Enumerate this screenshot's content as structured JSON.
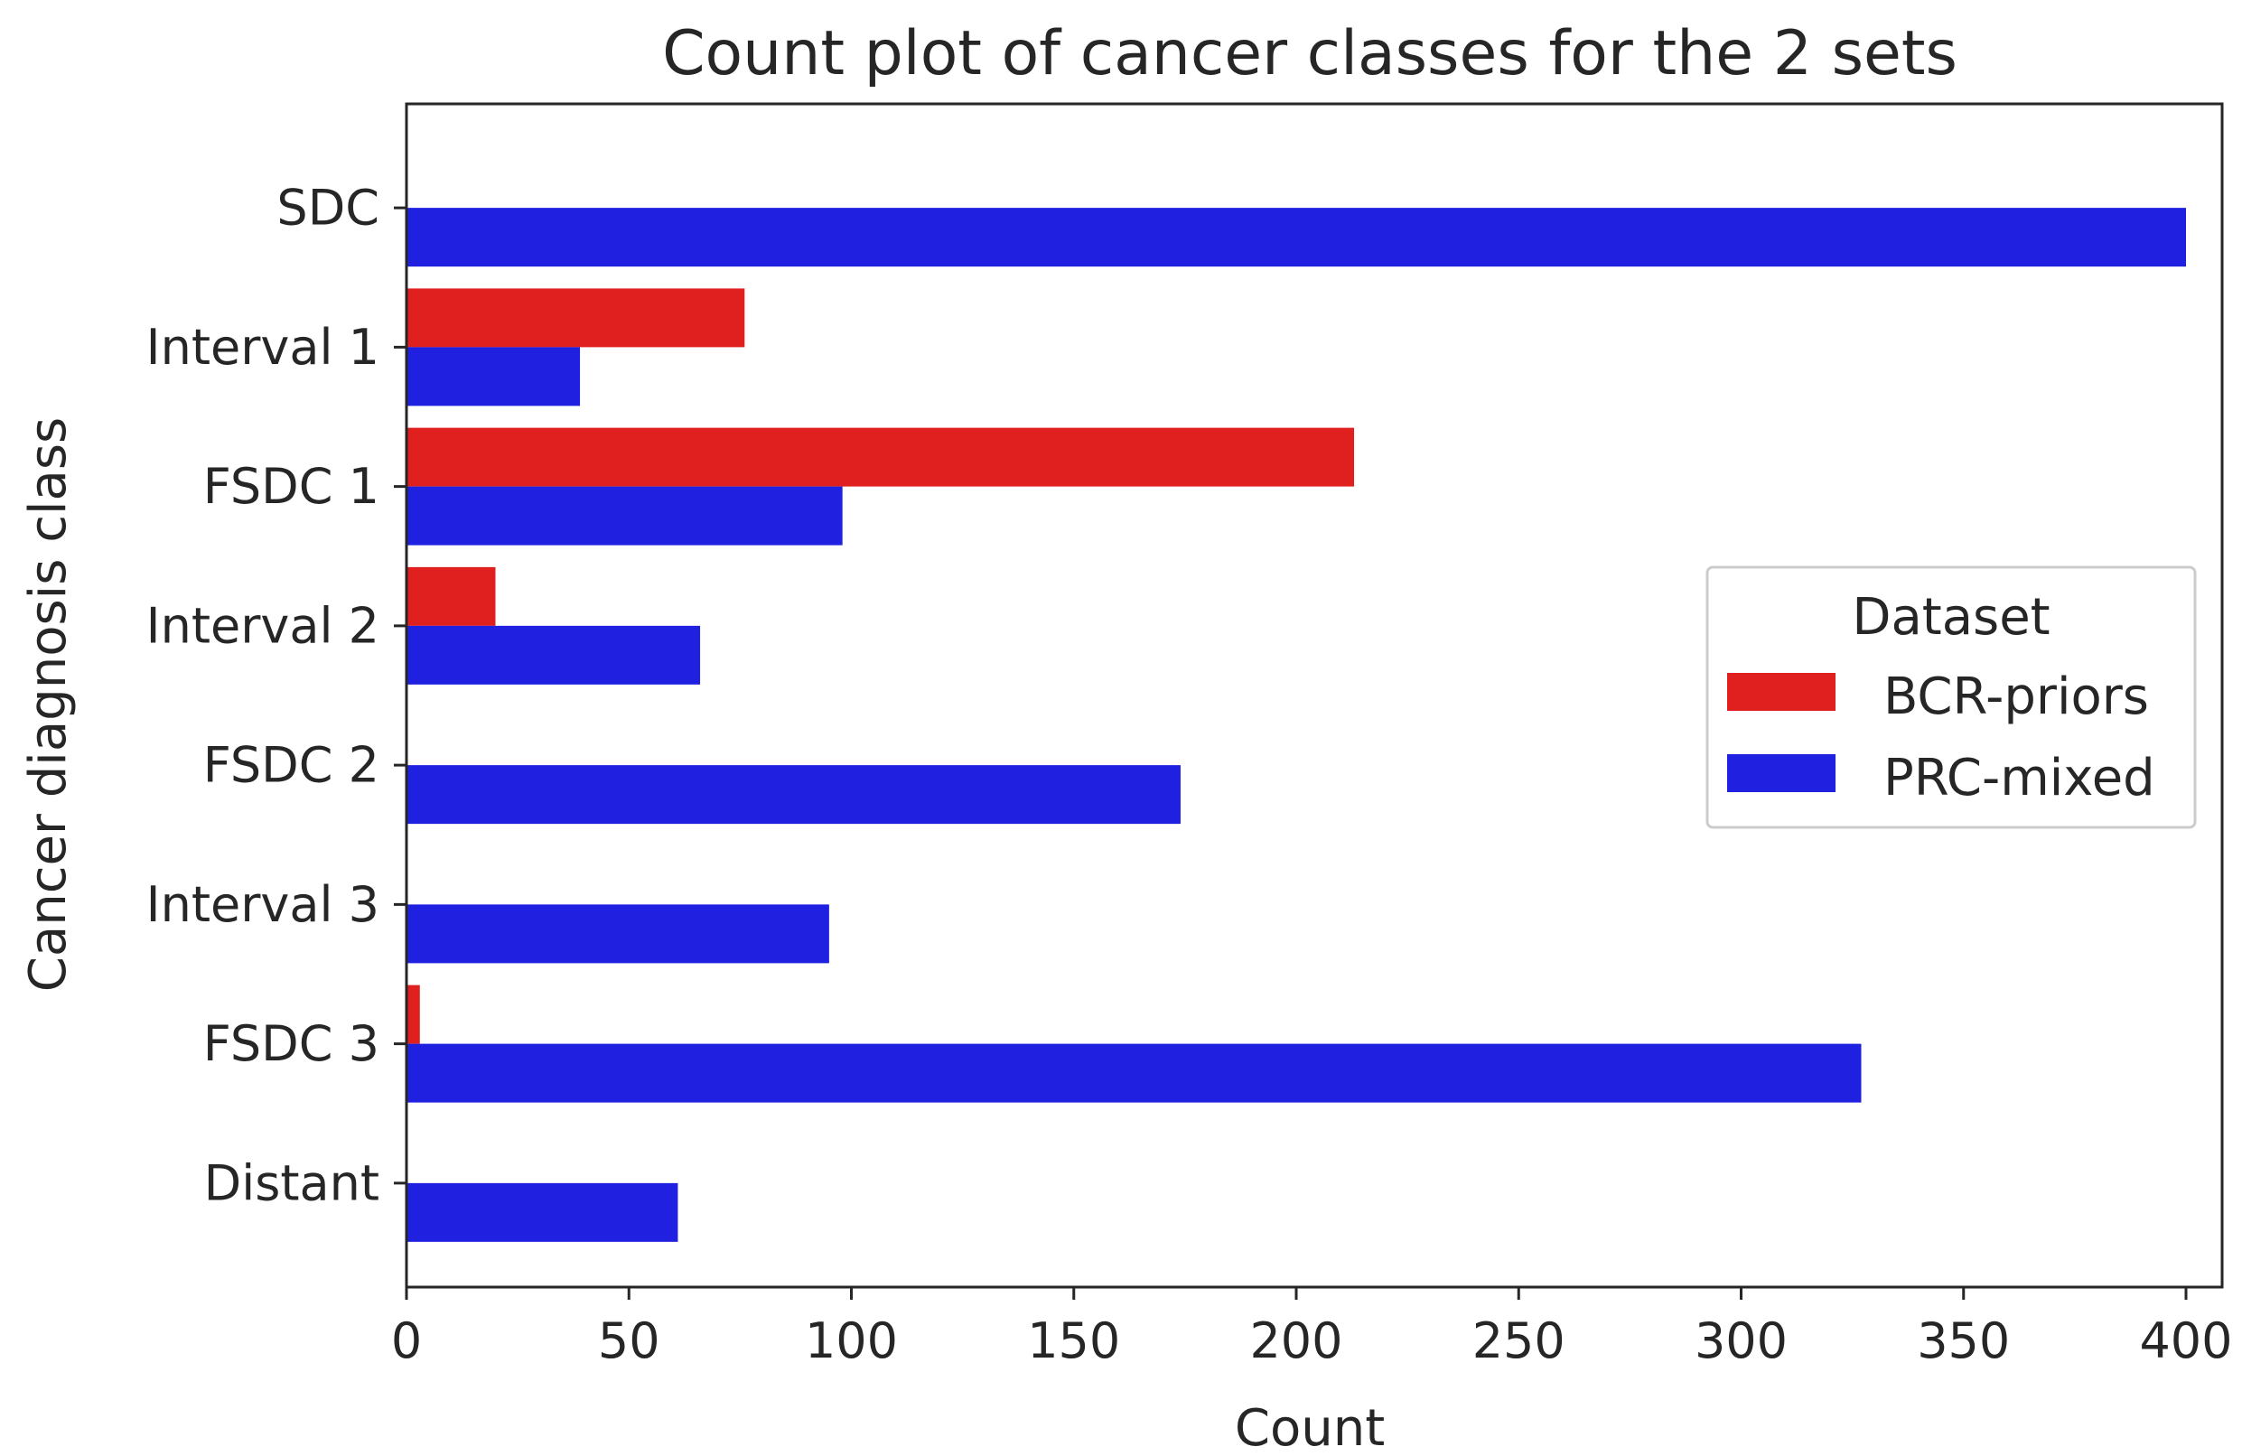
{
  "chart_data": {
    "type": "bar",
    "orientation": "horizontal",
    "title": "Count plot of cancer classes for the 2 sets",
    "xlabel": "Count",
    "ylabel": "Cancer diagnosis class",
    "xlim": [
      0,
      420
    ],
    "xticks": [
      "0",
      "50",
      "100",
      "150",
      "200",
      "250",
      "300",
      "350",
      "400"
    ],
    "categories": [
      "SDC",
      "Interval 1",
      "FSDC 1",
      "Interval 2",
      "FSDC 2",
      "Interval 3",
      "FSDC 3",
      "Distant"
    ],
    "series": [
      {
        "name": "BCR-priors",
        "color": "#e0201f",
        "values": [
          0,
          76,
          213,
          20,
          0,
          0,
          3,
          0
        ]
      },
      {
        "name": "PRC-mixed",
        "color": "#1f20e0",
        "values": [
          400,
          39,
          98,
          66,
          174,
          95,
          327,
          61
        ]
      }
    ],
    "legend": {
      "title": "Dataset",
      "position": "right"
    },
    "grid": false
  }
}
